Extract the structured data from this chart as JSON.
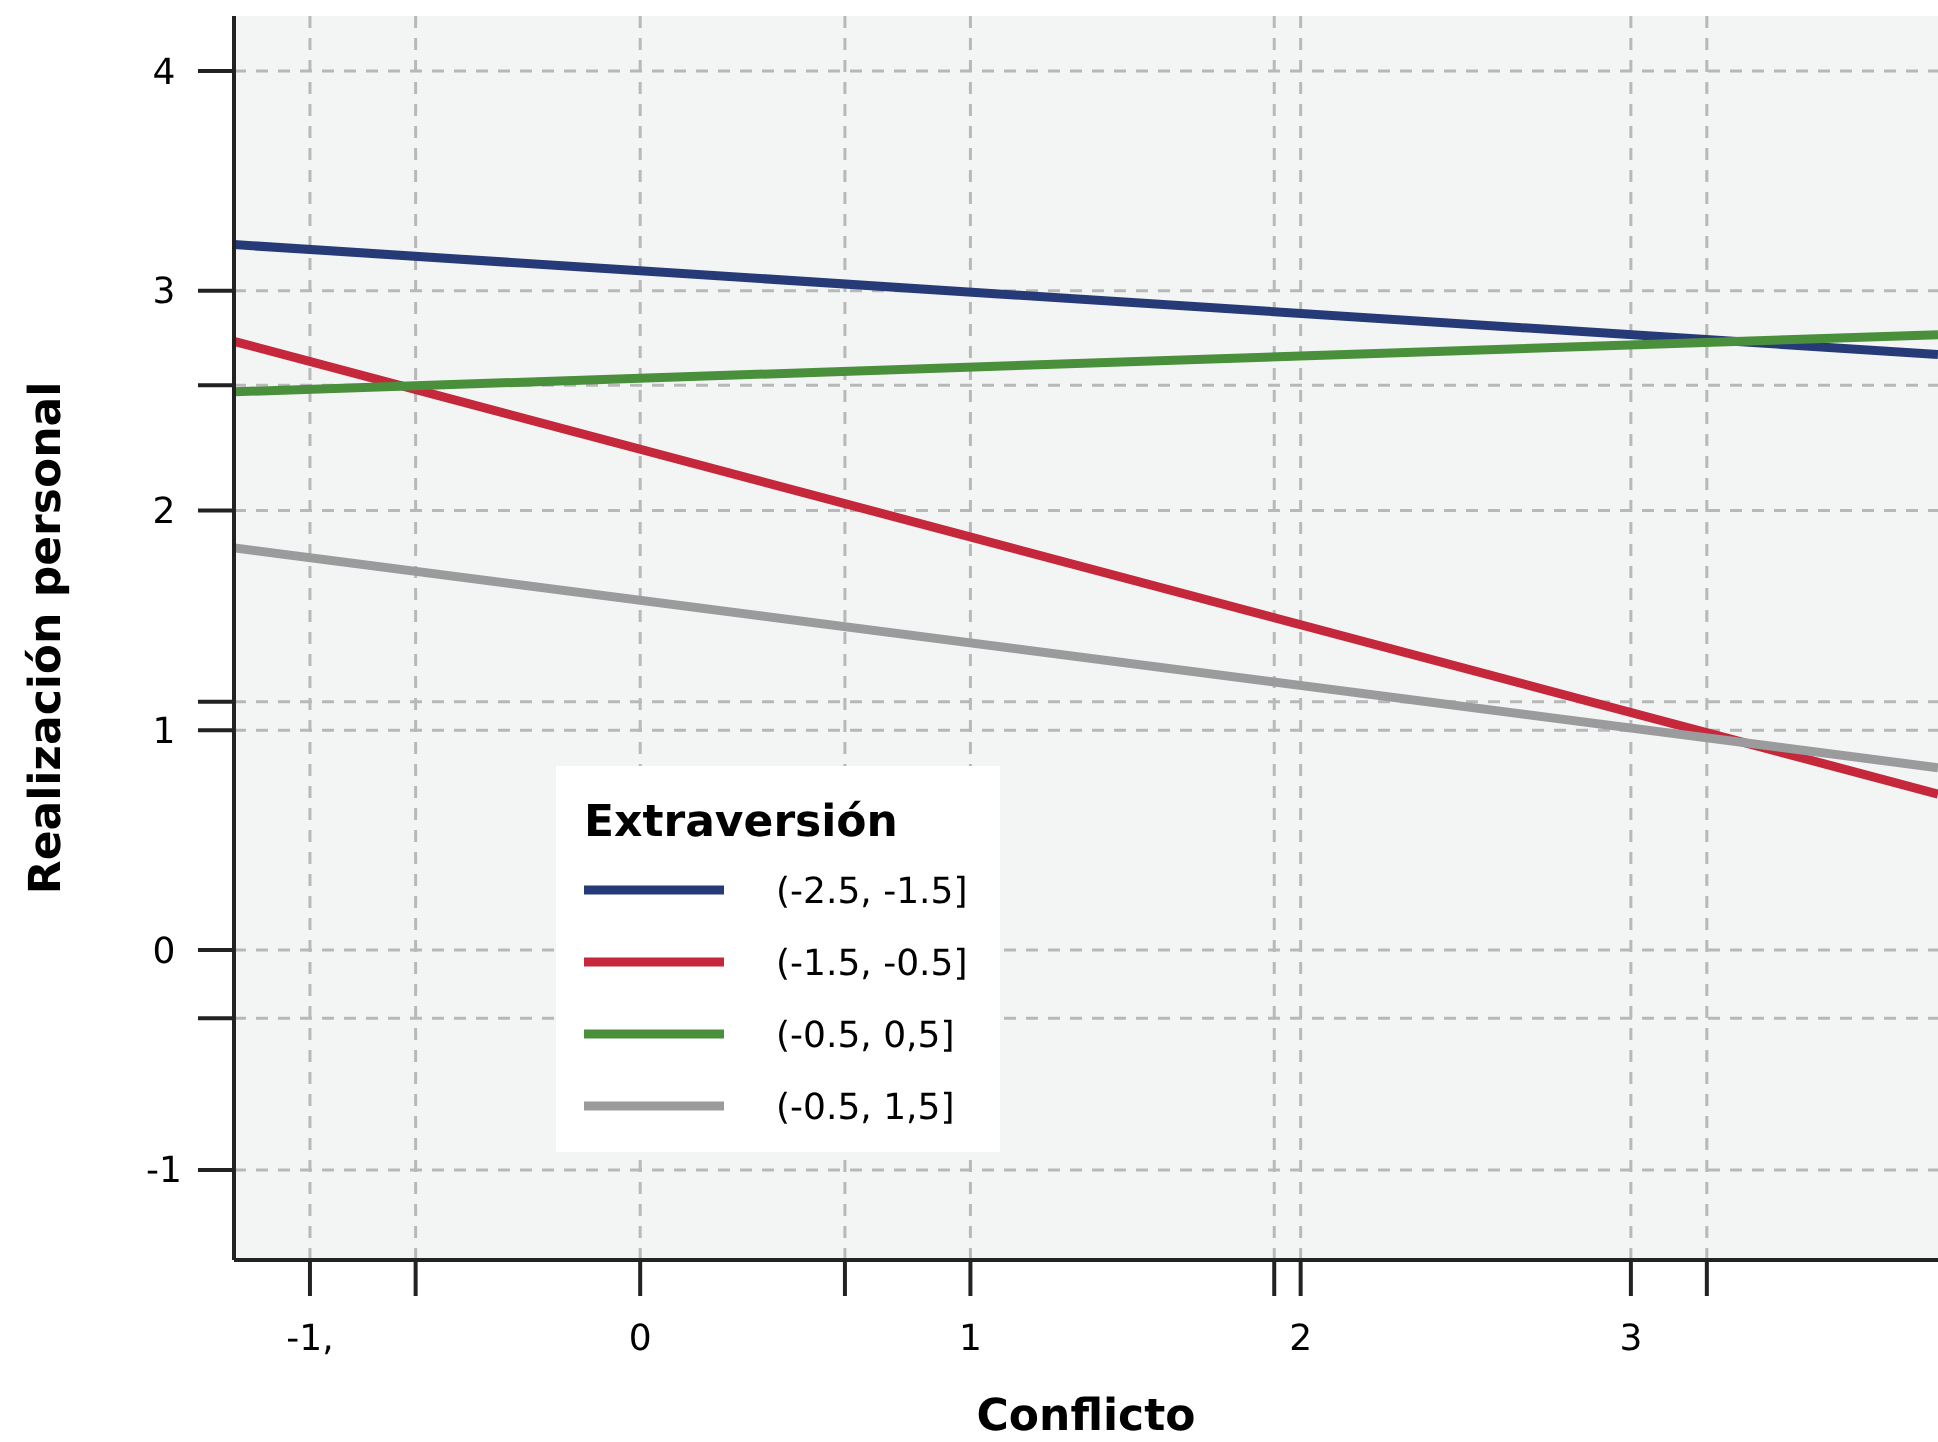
{
  "chart_data": {
    "type": "line",
    "xlabel": "Conflicto",
    "ylabel": "Realización personal",
    "legend_title": "Extraversión",
    "x": [
      -1.23,
      3.93
    ],
    "series": [
      {
        "name": "(-2.5, -1.5]",
        "color": "#273a78",
        "values": [
          3.21,
          2.71
        ]
      },
      {
        "name": "(-1.5, -0.5]",
        "color": "#c4283a",
        "values": [
          2.77,
          0.71
        ]
      },
      {
        "name": "(-0.5, 0,5]",
        "color": "#4a8f3c",
        "values": [
          2.54,
          2.8
        ]
      },
      {
        "name": "(-0.5, 1,5]",
        "color": "#9b9b9e",
        "values": [
          1.83,
          0.83
        ]
      }
    ],
    "xlim": [
      -1.23,
      3.93
    ],
    "ylim": [
      -1.41,
      4.25
    ],
    "xticks": [
      {
        "value": -1,
        "label": "-1,"
      },
      {
        "value": -0.68,
        "label": null
      },
      0,
      {
        "value": 0.62,
        "label": null
      },
      1,
      {
        "value": 1.92,
        "label": null
      },
      2,
      3,
      {
        "value": 3.23,
        "label": null
      }
    ],
    "yticks": [
      -1,
      {
        "value": -0.31,
        "label": null
      },
      0,
      1,
      {
        "value": 1.13,
        "label": null
      },
      2,
      {
        "value": 2.57,
        "label": null
      },
      3,
      4
    ],
    "grid": true,
    "legend": "bottom left",
    "marker": "none",
    "line_style": "solid"
  }
}
